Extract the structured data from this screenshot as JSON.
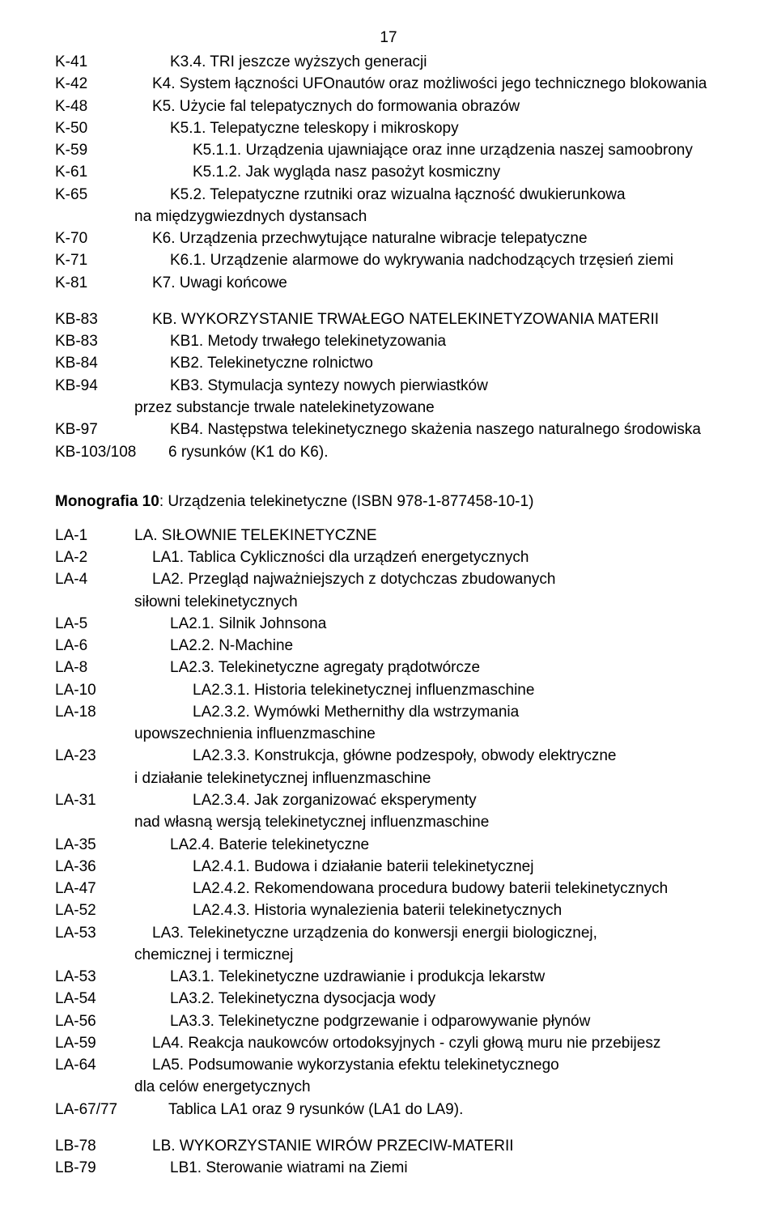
{
  "page_number": "17",
  "block1": [
    {
      "code": "K-41",
      "text": "K3.4. TRI jeszcze wyższych generacji",
      "indent": 2
    },
    {
      "code": "K-42",
      "text": "K4. System łączności UFOnautów oraz możliwości jego technicznego blokowania",
      "indent": 1
    },
    {
      "code": "K-48",
      "text": "K5. Użycie fal telepatycznych do formowania obrazów",
      "indent": 1
    },
    {
      "code": "K-50",
      "text": "K5.1. Telepatyczne teleskopy i mikroskopy",
      "indent": 2
    },
    {
      "code": "K-59",
      "text": "K5.1.1. Urządzenia ujawniające oraz inne urządzenia naszej samoobrony",
      "indent": 3
    },
    {
      "code": "K-61",
      "text": "K5.1.2. Jak wygląda nasz pasożyt kosmiczny",
      "indent": 3
    },
    {
      "code": "K-65",
      "text": "K5.2. Telepatyczne rzutniki oraz wizualna łączność dwukierunkowa",
      "indent": 2
    },
    {
      "code": "",
      "text": "na międzygwiezdnych dystansach",
      "indent": 3,
      "cont": true
    },
    {
      "code": "K-70",
      "text": "K6. Urządzenia przechwytujące naturalne wibracje telepatyczne",
      "indent": 1
    },
    {
      "code": "K-71",
      "text": "K6.1. Urządzenie alarmowe do wykrywania nadchodzących trzęsień ziemi",
      "indent": 2
    },
    {
      "code": "K-81",
      "text": "K7. Uwagi końcowe",
      "indent": 1
    }
  ],
  "block2": [
    {
      "code": "KB-83",
      "text": "KB. WYKORZYSTANIE TRWAŁEGO NATELEKINETYZOWANIA MATERII",
      "indent": 1
    },
    {
      "code": "KB-83",
      "text": "KB1. Metody trwałego telekinetyzowania",
      "indent": 2
    },
    {
      "code": "KB-84",
      "text": "KB2. Telekinetyczne rolnictwo",
      "indent": 2
    },
    {
      "code": "KB-94",
      "text": "KB3. Stymulacja syntezy nowych pierwiastków",
      "indent": 2
    },
    {
      "code": "",
      "text": "przez substancje trwale natelekinetyzowane",
      "indent": 3,
      "cont": true
    },
    {
      "code": "KB-97",
      "text": "KB4. Następstwa telekinetycznego skażenia naszego naturalnego środowiska",
      "indent": 2
    },
    {
      "code": "KB-103/108",
      "text": "6 rysunków (K1 do K6).",
      "indent": 1,
      "wide": true
    }
  ],
  "mono": {
    "bold": "Monografia 10",
    "rest": ": Urządzenia telekinetyczne (ISBN 978-1-877458-10-1)"
  },
  "block3": [
    {
      "code": "LA-1",
      "text": "LA. SIŁOWNIE TELEKINETYCZNE",
      "indent": 0
    },
    {
      "code": "LA-2",
      "text": "LA1. Tablica Cykliczności dla urządzeń energetycznych",
      "indent": 1
    },
    {
      "code": "LA-4",
      "text": "LA2. Przegląd najważniejszych z dotychczas zbudowanych",
      "indent": 1
    },
    {
      "code": "",
      "text": "siłowni telekinetycznych",
      "indent": 2,
      "cont": true
    },
    {
      "code": "LA-5",
      "text": "LA2.1. Silnik Johnsona",
      "indent": 2
    },
    {
      "code": "LA-6",
      "text": "LA2.2. N-Machine",
      "indent": 2
    },
    {
      "code": "LA-8",
      "text": "LA2.3. Telekinetyczne agregaty prądotwórcze",
      "indent": 2
    },
    {
      "code": "LA-10",
      "text": "LA2.3.1. Historia telekinetycznej influenzmaschine",
      "indent": 3
    },
    {
      "code": "LA-18",
      "text": "LA2.3.2. Wymówki Methernithy dla wstrzymania",
      "indent": 3
    },
    {
      "code": "",
      "text": "upowszechnienia influenzmaschine",
      "indent": 4,
      "cont": true
    },
    {
      "code": "LA-23",
      "text": "LA2.3.3. Konstrukcja, główne podzespoły, obwody elektryczne",
      "indent": 3
    },
    {
      "code": "",
      "text": "i działanie telekinetycznej influenzmaschine",
      "indent": 4,
      "cont": true
    },
    {
      "code": "LA-31",
      "text": "LA2.3.4. Jak zorganizować eksperymenty",
      "indent": 3
    },
    {
      "code": "",
      "text": "nad własną wersją telekinetycznej influenzmaschine",
      "indent": 4,
      "cont": true
    },
    {
      "code": "LA-35",
      "text": "LA2.4. Baterie telekinetyczne",
      "indent": 2
    },
    {
      "code": "LA-36",
      "text": "LA2.4.1. Budowa i działanie baterii telekinetycznej",
      "indent": 3
    },
    {
      "code": "LA-47",
      "text": "LA2.4.2. Rekomendowana procedura budowy baterii telekinetycznych",
      "indent": 3
    },
    {
      "code": "LA-52",
      "text": "LA2.4.3. Historia wynalezienia baterii telekinetycznych",
      "indent": 3
    },
    {
      "code": "LA-53",
      "text": "LA3. Telekinetyczne urządzenia do konwersji energii biologicznej,",
      "indent": 1
    },
    {
      "code": "",
      "text": "chemicznej i termicznej",
      "indent": 2,
      "cont": true
    },
    {
      "code": "LA-53",
      "text": "LA3.1. Telekinetyczne uzdrawianie i produkcja lekarstw",
      "indent": 2
    },
    {
      "code": "LA-54",
      "text": "LA3.2. Telekinetyczna dysocjacja wody",
      "indent": 2
    },
    {
      "code": "LA-56",
      "text": "LA3.3. Telekinetyczne podgrzewanie i odparowywanie płynów",
      "indent": 2
    },
    {
      "code": "LA-59",
      "text": "LA4. Reakcja naukowców ortodoksyjnych - czyli głową muru nie przebijesz",
      "indent": 1
    },
    {
      "code": "LA-64",
      "text": "LA5. Podsumowanie wykorzystania efektu telekinetycznego",
      "indent": 1
    },
    {
      "code": "",
      "text": "dla celów energetycznych",
      "indent": 2,
      "cont": true
    },
    {
      "code": "LA-67/77",
      "text": "Tablica LA1 oraz 9 rysunków (LA1 do LA9).",
      "indent": 1,
      "wide": true
    }
  ],
  "block4": [
    {
      "code": "LB-78",
      "text": "LB. WYKORZYSTANIE WIRÓW PRZECIW-MATERII",
      "indent": 1
    },
    {
      "code": "LB-79",
      "text": "LB1. Sterowanie wiatrami na Ziemi",
      "indent": 2
    }
  ]
}
